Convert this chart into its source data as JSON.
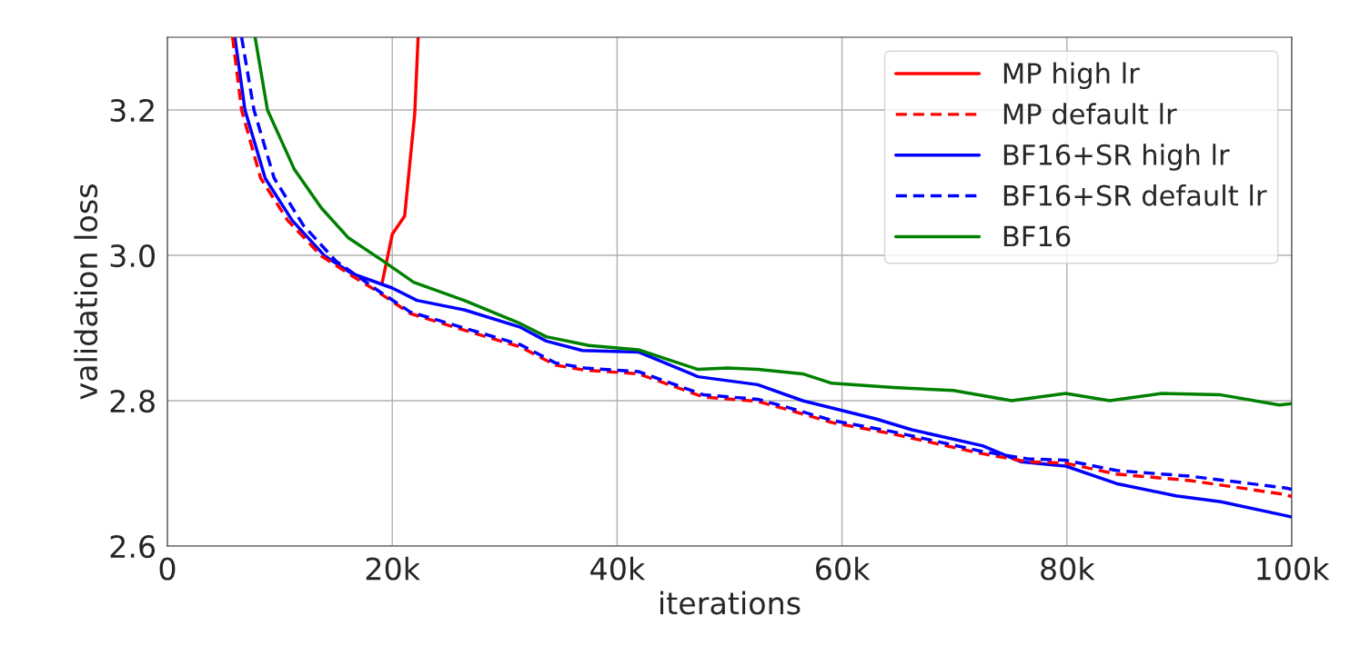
{
  "chart_data": {
    "type": "line",
    "xlabel": "iterations",
    "ylabel": "validation loss",
    "xlim": [
      0,
      100000
    ],
    "xticks": [
      0,
      {
        "value": 20000,
        "label": "20k"
      },
      {
        "value": 40000,
        "label": "40k"
      },
      {
        "value": 60000,
        "label": "60k"
      },
      {
        "value": 80000,
        "label": "80k"
      },
      {
        "value": 100000,
        "label": "100k"
      }
    ],
    "ylim": [
      2.6,
      3.3
    ],
    "yticks": [
      2.6,
      2.8,
      {
        "value": 3.0,
        "label": "3.0"
      },
      3.2
    ],
    "grid": true,
    "legend": "top right",
    "marker": "none",
    "series": [
      {
        "name": "MP high lr",
        "color": "#ff0000",
        "line_style": "solid",
        "x": [
          19100,
          20000,
          21100,
          22000,
          22300
        ],
        "values": [
          2.962,
          3.029,
          3.054,
          3.195,
          3.3
        ]
      },
      {
        "name": "MP default lr",
        "color": "#ff0000",
        "line_style": "dashed",
        "x": [
          5800,
          6600,
          8300,
          10700,
          13700,
          16400,
          18400,
          21600,
          26400,
          31400,
          34500,
          37100,
          41900,
          47700,
          52500,
          55100,
          59100,
          64600,
          72500,
          76500,
          79900,
          84400,
          91000,
          99400,
          100000
        ],
        "values": [
          3.3,
          3.2,
          3.106,
          3.048,
          2.999,
          2.972,
          2.953,
          2.92,
          2.897,
          2.874,
          2.849,
          2.842,
          2.837,
          2.805,
          2.799,
          2.788,
          2.77,
          2.754,
          2.727,
          2.716,
          2.714,
          2.699,
          2.69,
          2.671,
          2.668
        ]
      },
      {
        "name": "BF16+SR high lr",
        "color": "#0000ff",
        "line_style": "solid",
        "x": [
          6000,
          6900,
          8700,
          11100,
          14000,
          16400,
          20000,
          22200,
          26400,
          31400,
          33700,
          36900,
          41900,
          47200,
          52500,
          56500,
          59100,
          63000,
          66200,
          72500,
          75900,
          79900,
          84400,
          89700,
          93700,
          99400,
          100000
        ],
        "values": [
          3.3,
          3.2,
          3.106,
          3.048,
          2.999,
          2.975,
          2.955,
          2.938,
          2.925,
          2.901,
          2.882,
          2.869,
          2.867,
          2.833,
          2.822,
          2.8,
          2.79,
          2.775,
          2.76,
          2.738,
          2.716,
          2.71,
          2.686,
          2.669,
          2.661,
          2.642,
          2.64
        ]
      },
      {
        "name": "BF16+SR default lr",
        "color": "#0000ff",
        "line_style": "dashed",
        "x": [
          6600,
          7700,
          9500,
          12100,
          15000,
          18400,
          21600,
          26400,
          31400,
          34500,
          37100,
          41900,
          47700,
          52500,
          55100,
          59100,
          64600,
          72500,
          76500,
          79900,
          84400,
          91000,
          99400,
          100000
        ],
        "values": [
          3.3,
          3.2,
          3.106,
          3.041,
          2.992,
          2.955,
          2.922,
          2.9,
          2.877,
          2.852,
          2.845,
          2.84,
          2.808,
          2.802,
          2.791,
          2.773,
          2.757,
          2.73,
          2.72,
          2.718,
          2.704,
          2.696,
          2.68,
          2.678
        ]
      },
      {
        "name": "BF16",
        "color": "#008000",
        "line_style": "solid",
        "x": [
          7800,
          8900,
          11300,
          13700,
          16100,
          19200,
          21900,
          26400,
          31400,
          33700,
          37500,
          41900,
          47200,
          49800,
          52500,
          56500,
          59100,
          64600,
          69900,
          75100,
          79900,
          83800,
          88400,
          93700,
          98900,
          100000
        ],
        "values": [
          3.3,
          3.2,
          3.118,
          3.065,
          3.024,
          2.992,
          2.963,
          2.938,
          2.906,
          2.888,
          2.876,
          2.87,
          2.843,
          2.845,
          2.843,
          2.837,
          2.824,
          2.818,
          2.814,
          2.8,
          2.81,
          2.8,
          2.81,
          2.808,
          2.794,
          2.796
        ]
      }
    ]
  }
}
